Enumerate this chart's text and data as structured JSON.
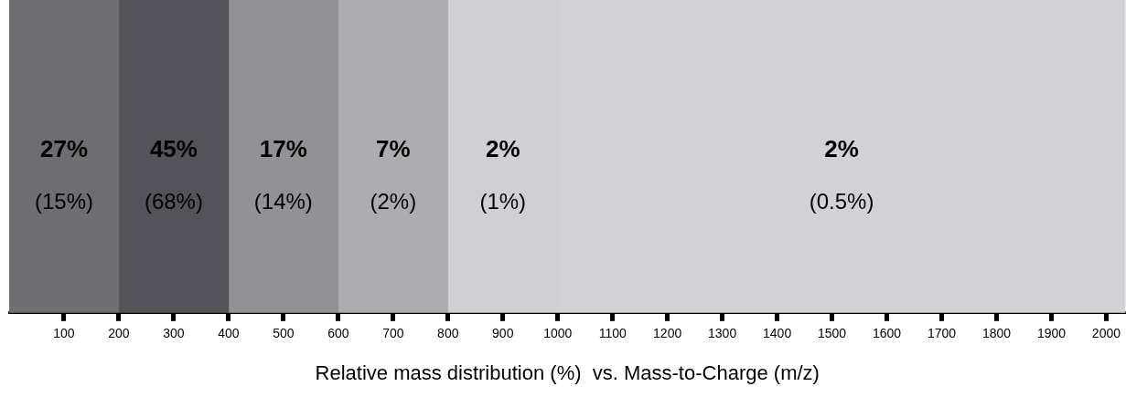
{
  "chart_data": {
    "type": "bar",
    "orientation": "horizontal",
    "stacked": true,
    "xlabel": "Relative mass distribution (%)  vs. Mass-to-Charge (m/z)",
    "categories": [
      null
    ],
    "xlim": [
      0,
      2035
    ],
    "xticks": [
      100,
      200,
      300,
      400,
      500,
      600,
      700,
      800,
      900,
      1000,
      1100,
      1200,
      1300,
      1400,
      1500,
      1600,
      1700,
      1800,
      1900,
      2000
    ],
    "series": [
      {
        "color": "#6f6e73",
        "values": [
          200
        ]
      },
      {
        "color": "#55535a",
        "values": [
          200
        ]
      },
      {
        "color": "#929196",
        "values": [
          200
        ]
      },
      {
        "color": "#adacb1",
        "values": [
          200
        ]
      },
      {
        "color": "#d0cfd4",
        "values": [
          200
        ]
      },
      {
        "color": "#d2d1d6",
        "values": [
          1035
        ]
      }
    ],
    "annotations": [
      "27%",
      "(15%)",
      "45%",
      "(68%)",
      "17%",
      "(14%)",
      "7%",
      "(2%)",
      "2%",
      "(1%)",
      "2%",
      "(0.5%)"
    ]
  }
}
